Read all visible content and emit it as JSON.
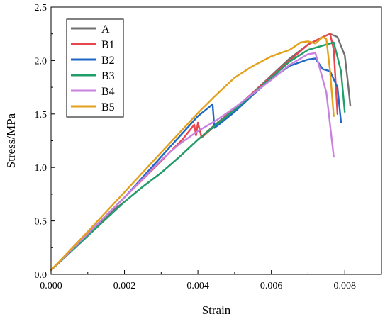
{
  "chart_data": {
    "type": "line",
    "xlabel": "Strain",
    "ylabel": "Stress/MPa",
    "xlim": [
      0,
      0.009
    ],
    "ylim": [
      0,
      2.5
    ],
    "xticks": [
      "0.000",
      "0.002",
      "0.004",
      "0.006",
      "0.008"
    ],
    "xtick_values": [
      0,
      0.002,
      0.004,
      0.006,
      0.008
    ],
    "yticks": [
      "0.0",
      "0.5",
      "1.0",
      "1.5",
      "2.0",
      "2.5"
    ],
    "ytick_values": [
      0,
      0.5,
      1.0,
      1.5,
      2.0,
      2.5
    ],
    "grid": false,
    "legend_position": "top-left",
    "series": [
      {
        "name": "A",
        "color": "#707070",
        "x": [
          0.0,
          0.001,
          0.0017,
          0.002,
          0.0025,
          0.003,
          0.0035,
          0.004,
          0.0045,
          0.005,
          0.0055,
          0.006,
          0.0065,
          0.007,
          0.0074,
          0.0076,
          0.0078,
          0.008,
          0.0081,
          0.00815
        ],
        "y": [
          0.04,
          0.36,
          0.6,
          0.68,
          0.82,
          0.95,
          1.1,
          1.26,
          1.41,
          1.55,
          1.7,
          1.86,
          2.02,
          2.15,
          2.22,
          2.25,
          2.22,
          2.05,
          1.75,
          1.58
        ]
      },
      {
        "name": "B1",
        "color": "#e8454e",
        "x": [
          0.0,
          0.001,
          0.002,
          0.003,
          0.0036,
          0.0039,
          0.00395,
          0.004,
          0.0041,
          0.0045,
          0.005,
          0.0055,
          0.006,
          0.0065,
          0.007,
          0.0074,
          0.0076,
          0.0077,
          0.0078
        ],
        "y": [
          0.04,
          0.38,
          0.72,
          1.06,
          1.27,
          1.4,
          1.3,
          1.42,
          1.28,
          1.4,
          1.55,
          1.7,
          1.85,
          2.0,
          2.15,
          2.22,
          2.25,
          2.1,
          1.5
        ]
      },
      {
        "name": "B2",
        "color": "#1f67c4",
        "x": [
          0.0,
          0.001,
          0.002,
          0.003,
          0.004,
          0.0044,
          0.00445,
          0.0046,
          0.005,
          0.0055,
          0.006,
          0.0065,
          0.007,
          0.0072,
          0.0074,
          0.0076,
          0.0078,
          0.0079
        ],
        "y": [
          0.04,
          0.38,
          0.72,
          1.1,
          1.48,
          1.59,
          1.37,
          1.41,
          1.52,
          1.68,
          1.83,
          1.95,
          2.01,
          2.02,
          1.92,
          1.9,
          1.75,
          1.42
        ]
      },
      {
        "name": "B3",
        "color": "#1f9e6a",
        "x": [
          0.0,
          0.001,
          0.002,
          0.0025,
          0.003,
          0.0035,
          0.004,
          0.0045,
          0.005,
          0.0055,
          0.006,
          0.0065,
          0.007,
          0.0075,
          0.0077,
          0.0079,
          0.008
        ],
        "y": [
          0.04,
          0.36,
          0.68,
          0.82,
          0.95,
          1.1,
          1.26,
          1.4,
          1.54,
          1.69,
          1.84,
          1.99,
          2.1,
          2.15,
          2.17,
          1.9,
          1.52
        ]
      },
      {
        "name": "B4",
        "color": "#c981e0",
        "x": [
          0.0,
          0.001,
          0.002,
          0.003,
          0.0035,
          0.004,
          0.0045,
          0.005,
          0.0055,
          0.006,
          0.0065,
          0.007,
          0.0072,
          0.0073,
          0.0075,
          0.0076,
          0.0077
        ],
        "y": [
          0.04,
          0.38,
          0.72,
          1.07,
          1.22,
          1.34,
          1.44,
          1.56,
          1.69,
          1.82,
          1.96,
          2.06,
          2.07,
          1.95,
          1.7,
          1.4,
          1.1
        ]
      },
      {
        "name": "B5",
        "color": "#e3a11b",
        "x": [
          0.0,
          0.001,
          0.002,
          0.003,
          0.004,
          0.0045,
          0.005,
          0.0055,
          0.006,
          0.0065,
          0.0068,
          0.007,
          0.0072,
          0.0074,
          0.0075,
          0.0076,
          0.0077
        ],
        "y": [
          0.04,
          0.4,
          0.77,
          1.14,
          1.51,
          1.68,
          1.84,
          1.95,
          2.04,
          2.1,
          2.17,
          2.18,
          2.16,
          2.22,
          2.2,
          1.9,
          1.48
        ]
      }
    ]
  }
}
